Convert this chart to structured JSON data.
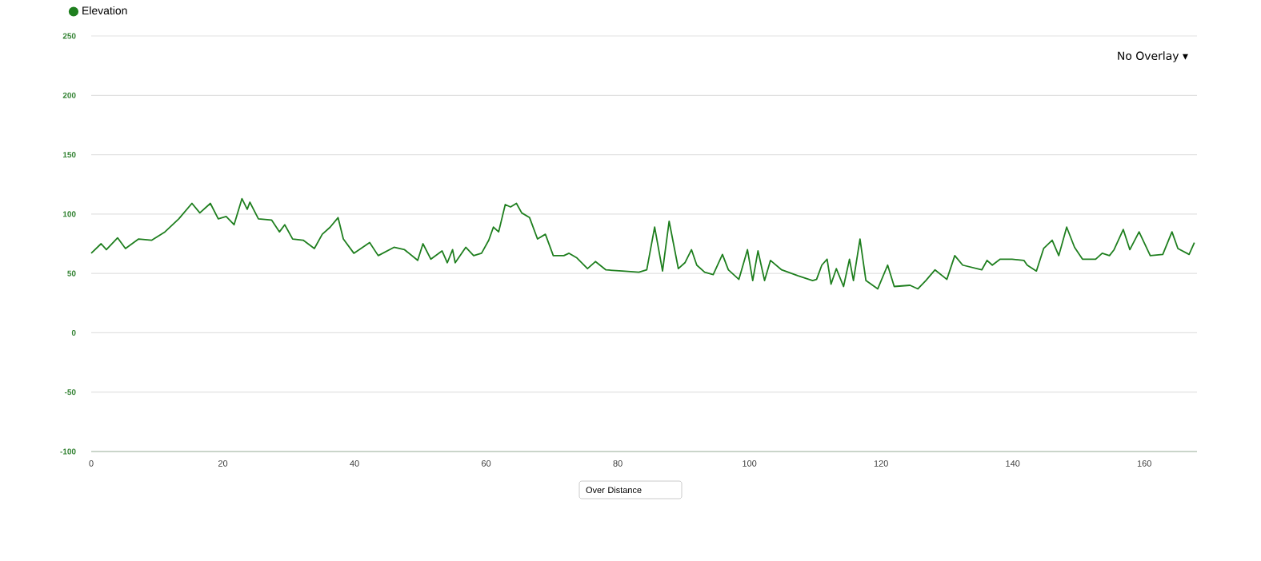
{
  "chart_data": {
    "type": "line",
    "xlim": [
      0,
      168
    ],
    "xticks": [
      0,
      20,
      40,
      60,
      80,
      100,
      120,
      140,
      160
    ],
    "ylim": [
      -100,
      250
    ],
    "yticks": [
      -100,
      -50,
      0,
      50,
      100,
      150,
      200,
      250
    ],
    "grid": "y",
    "legend": "top left",
    "annotations": [
      "No Overlay ▾",
      "Over Distance"
    ],
    "series": [
      {
        "name": "Elevation",
        "color": "#1f7f1f",
        "x": [
          0,
          1.5,
          2.3,
          4,
          5.2,
          7.2,
          9.2,
          11.2,
          13.3,
          15.3,
          16.5,
          18.1,
          19.3,
          20.5,
          21.7,
          22.9,
          23.7,
          24.1,
          25.4,
          27.4,
          28.6,
          29.4,
          30.6,
          32.2,
          33.9,
          35.1,
          36.3,
          37.5,
          38.3,
          39.9,
          42.3,
          43.6,
          46,
          47.6,
          49.6,
          50.4,
          51.6,
          53.3,
          54.1,
          54.9,
          55.3,
          56.9,
          58.1,
          59.3,
          60.4,
          61.1,
          61.9,
          62.9,
          63.7,
          64.6,
          65.4,
          66.6,
          67.8,
          69,
          70.2,
          71.8,
          72.6,
          73.8,
          75.4,
          76.6,
          78.2,
          80.7,
          83.2,
          84.4,
          85.6,
          86.8,
          87.8,
          89.2,
          90.2,
          91.2,
          92,
          93.2,
          94.5,
          95.9,
          96.8,
          98.4,
          99.7,
          100.5,
          101.3,
          102.3,
          103.2,
          104.9,
          107.4,
          109.6,
          110.2,
          111,
          111.8,
          112.4,
          113.2,
          114.3,
          115.2,
          115.8,
          116.8,
          117.7,
          119.5,
          121,
          122,
          124.4,
          125.6,
          126.8,
          128.2,
          130,
          131.2,
          132.4,
          135.3,
          136.1,
          136.9,
          138.1,
          139.9,
          141.7,
          142.2,
          143.6,
          144.7,
          146,
          147,
          148.2,
          149.4,
          150.6,
          152.6,
          153.6,
          154.7,
          155.4,
          156.8,
          157.8,
          159.2,
          160.9,
          162.8,
          164.2,
          165.1,
          166.8,
          167.6
        ],
        "values": [
          67,
          75,
          70,
          80,
          71,
          79,
          78,
          85,
          96,
          109,
          101,
          109,
          96,
          98,
          91,
          113,
          104,
          110,
          96,
          95,
          85,
          91,
          79,
          78,
          71,
          83,
          89,
          97,
          79,
          67,
          76,
          65,
          72,
          70,
          61,
          75,
          62,
          69,
          59,
          70,
          59,
          72,
          65,
          67,
          78,
          89,
          85,
          108,
          106,
          109,
          101,
          97,
          79,
          83,
          65,
          65,
          67,
          63,
          54,
          60,
          53,
          52,
          51,
          53,
          89,
          52,
          94,
          54,
          59,
          70,
          57,
          51,
          49,
          66,
          53,
          45,
          70,
          44,
          69,
          44,
          61,
          53,
          48,
          44,
          45,
          57,
          62,
          41,
          54,
          39,
          62,
          44,
          79,
          44,
          37,
          57,
          39,
          40,
          37,
          44,
          53,
          45,
          65,
          57,
          53,
          61,
          57,
          62,
          62,
          61,
          57,
          52,
          71,
          78,
          65,
          89,
          72,
          62,
          62,
          67,
          65,
          70,
          87,
          70,
          85,
          65,
          66,
          85,
          71,
          66,
          76
        ]
      }
    ]
  }
}
